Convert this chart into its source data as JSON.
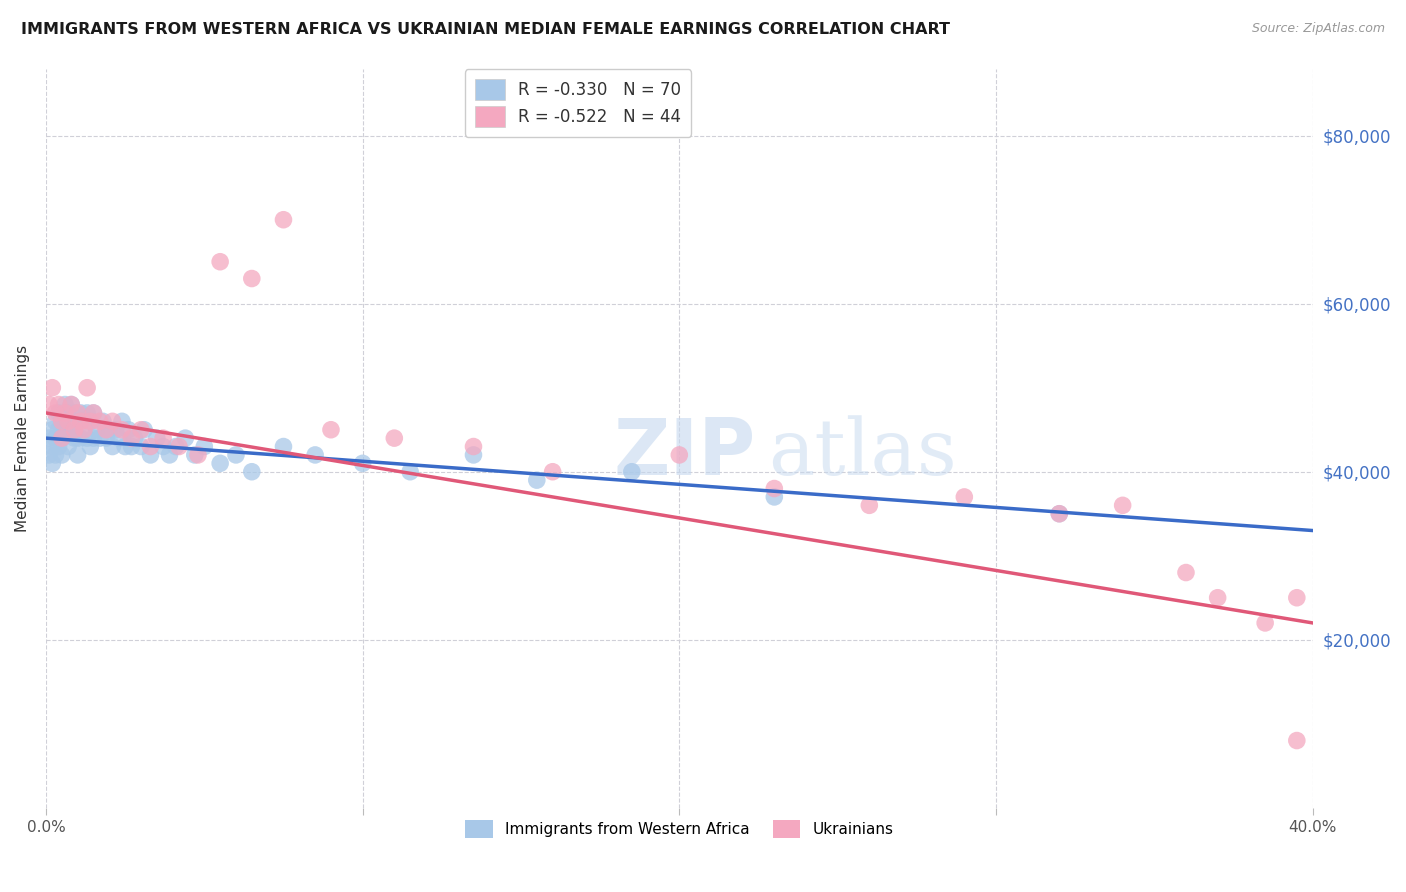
{
  "title": "IMMIGRANTS FROM WESTERN AFRICA VS UKRAINIAN MEDIAN FEMALE EARNINGS CORRELATION CHART",
  "source": "Source: ZipAtlas.com",
  "ylabel": "Median Female Earnings",
  "yticks": [
    20000,
    40000,
    60000,
    80000
  ],
  "ytick_labels": [
    "$20,000",
    "$40,000",
    "$60,000",
    "$80,000"
  ],
  "xlim": [
    0.0,
    0.4
  ],
  "ylim": [
    0,
    88000
  ],
  "legend1_label": "R = -0.330   N = 70",
  "legend2_label": "R = -0.522   N = 44",
  "legend1_color": "#a8c8e8",
  "legend2_color": "#f4a8c0",
  "scatter1_color": "#a8c8e8",
  "scatter2_color": "#f4a8c0",
  "line1_color": "#3a6bc8",
  "line2_color": "#e05878",
  "watermark_zip": "ZIP",
  "watermark_atlas": "atlas",
  "legend_bottom_label1": "Immigrants from Western Africa",
  "legend_bottom_label2": "Ukrainians",
  "xtick_positions": [
    0.0,
    0.4
  ],
  "xtick_labels": [
    "0.0%",
    "40.0%"
  ],
  "grid_xticks": [
    0.0,
    0.1,
    0.2,
    0.3,
    0.4
  ],
  "scatter1_x": [
    0.001,
    0.001,
    0.002,
    0.002,
    0.002,
    0.003,
    0.003,
    0.003,
    0.004,
    0.004,
    0.004,
    0.005,
    0.005,
    0.005,
    0.006,
    0.006,
    0.007,
    0.007,
    0.007,
    0.008,
    0.008,
    0.009,
    0.009,
    0.01,
    0.01,
    0.01,
    0.011,
    0.011,
    0.012,
    0.013,
    0.013,
    0.014,
    0.014,
    0.015,
    0.015,
    0.016,
    0.017,
    0.018,
    0.019,
    0.02,
    0.021,
    0.022,
    0.023,
    0.024,
    0.025,
    0.026,
    0.027,
    0.028,
    0.03,
    0.031,
    0.033,
    0.035,
    0.037,
    0.039,
    0.041,
    0.044,
    0.047,
    0.05,
    0.055,
    0.06,
    0.065,
    0.075,
    0.085,
    0.1,
    0.115,
    0.135,
    0.155,
    0.185,
    0.23,
    0.32
  ],
  "scatter1_y": [
    44000,
    42000,
    45000,
    43000,
    41000,
    46000,
    44000,
    42000,
    47000,
    45000,
    43000,
    46000,
    44000,
    42000,
    48000,
    45000,
    47000,
    45000,
    43000,
    48000,
    45000,
    47000,
    44000,
    46000,
    44000,
    42000,
    47000,
    44000,
    46000,
    47000,
    44000,
    46000,
    43000,
    47000,
    44000,
    45000,
    44000,
    46000,
    44000,
    45000,
    43000,
    45000,
    44000,
    46000,
    43000,
    45000,
    43000,
    44000,
    43000,
    45000,
    42000,
    44000,
    43000,
    42000,
    43000,
    44000,
    42000,
    43000,
    41000,
    42000,
    40000,
    43000,
    42000,
    41000,
    40000,
    42000,
    39000,
    40000,
    37000,
    35000
  ],
  "scatter2_x": [
    0.001,
    0.002,
    0.003,
    0.004,
    0.005,
    0.005,
    0.006,
    0.007,
    0.008,
    0.009,
    0.01,
    0.011,
    0.012,
    0.013,
    0.014,
    0.015,
    0.017,
    0.019,
    0.021,
    0.024,
    0.027,
    0.03,
    0.033,
    0.037,
    0.042,
    0.048,
    0.055,
    0.065,
    0.075,
    0.09,
    0.11,
    0.135,
    0.16,
    0.2,
    0.23,
    0.26,
    0.29,
    0.32,
    0.34,
    0.36,
    0.37,
    0.385,
    0.395,
    0.395
  ],
  "scatter2_y": [
    48000,
    50000,
    47000,
    48000,
    46000,
    44000,
    47000,
    46000,
    48000,
    45000,
    47000,
    46000,
    45000,
    50000,
    46000,
    47000,
    46000,
    45000,
    46000,
    45000,
    44000,
    45000,
    43000,
    44000,
    43000,
    42000,
    65000,
    63000,
    70000,
    45000,
    44000,
    43000,
    40000,
    42000,
    38000,
    36000,
    37000,
    35000,
    36000,
    28000,
    25000,
    22000,
    8000,
    25000
  ]
}
